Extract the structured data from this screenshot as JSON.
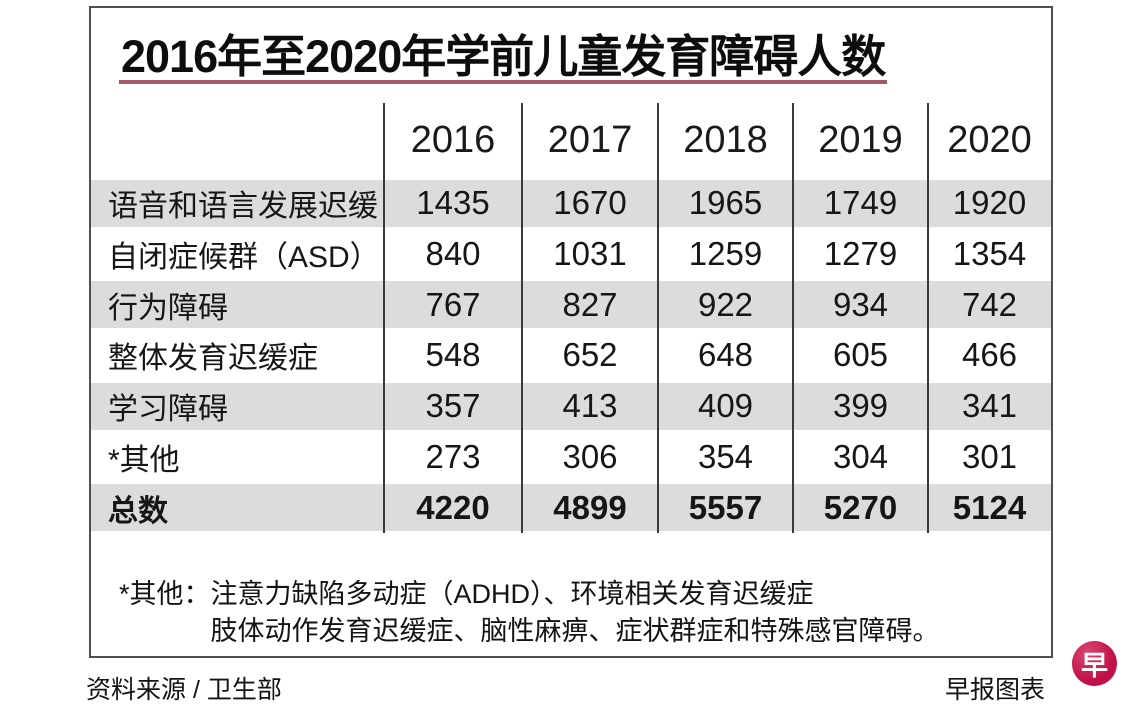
{
  "chart_data": {
    "type": "table",
    "title": "2016年至2020年学前儿童发育障碍人数",
    "columns": [
      "2016",
      "2017",
      "2018",
      "2019",
      "2020"
    ],
    "rows": [
      {
        "label": "语音和语言发展迟缓",
        "values": [
          1435,
          1670,
          1965,
          1749,
          1920
        ]
      },
      {
        "label": "自闭症候群（ASD）",
        "values": [
          840,
          1031,
          1259,
          1279,
          1354
        ]
      },
      {
        "label": "行为障碍",
        "values": [
          767,
          827,
          922,
          934,
          742
        ]
      },
      {
        "label": "整体发育迟缓症",
        "values": [
          548,
          652,
          648,
          605,
          466
        ]
      },
      {
        "label": "学习障碍",
        "values": [
          357,
          413,
          409,
          399,
          341
        ]
      },
      {
        "label": "*其他",
        "values": [
          273,
          306,
          354,
          304,
          301
        ]
      },
      {
        "label": "总数",
        "values": [
          4220,
          4899,
          5557,
          5270,
          5124
        ],
        "is_total": true
      }
    ],
    "layout_hints": {
      "shaded_rows": "alternating starting with first data row",
      "gridlines": "vertical column dividers only"
    }
  },
  "footnote": {
    "label": "*其他：",
    "line1": "注意力缺陷多动症（ADHD）、环境相关发育迟缓症",
    "line2": "肢体动作发育迟缓症、脑性麻痹、症状群症和特殊感官障碍。"
  },
  "footer": {
    "source": "资料来源 / 卫生部",
    "credit": "早报图表"
  },
  "logo": {
    "char": "早"
  },
  "colors": {
    "accent_rule": "#a65a68",
    "row_shade": "#dcdcdc",
    "divider": "#3a3a3a",
    "frame_border": "#4f4f4f",
    "logo_red": "#c11049",
    "text": "#111111"
  }
}
